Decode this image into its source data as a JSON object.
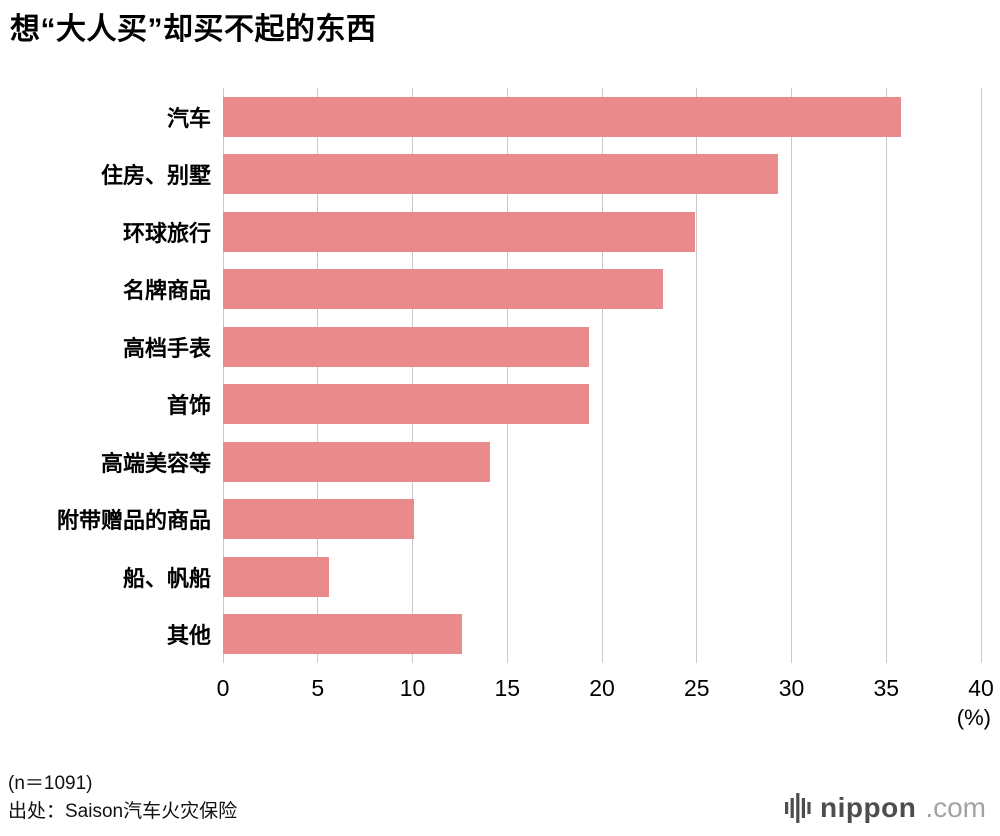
{
  "title": "想“大人买”却买不起的东西",
  "chart_data": {
    "type": "bar",
    "orientation": "horizontal",
    "title": "想“大人买”却买不起的东西",
    "categories": [
      "汽车",
      "住房、别墅",
      "环球旅行",
      "名牌商品",
      "高档手表",
      "首饰",
      "高端美容等",
      "附带赠品的商品",
      "船、帆船",
      "其他"
    ],
    "values": [
      35.8,
      29.3,
      24.9,
      23.2,
      19.3,
      19.3,
      14.1,
      10.1,
      5.6,
      12.6
    ],
    "xlim": [
      0,
      40
    ],
    "xticks": [
      0,
      5,
      10,
      15,
      20,
      25,
      30,
      35,
      40
    ],
    "x_unit_label": "(%)",
    "bar_color": "#e98b8c",
    "gridline_color": "#c9c9c9",
    "grid": true,
    "legend": "none"
  },
  "footer": {
    "sample_size": "(n＝1091)",
    "source": "出处：Saison汽车火灾保险"
  },
  "branding": {
    "icon": "equalizer-bars-icon",
    "name": "nippon",
    "tld": ".com"
  }
}
